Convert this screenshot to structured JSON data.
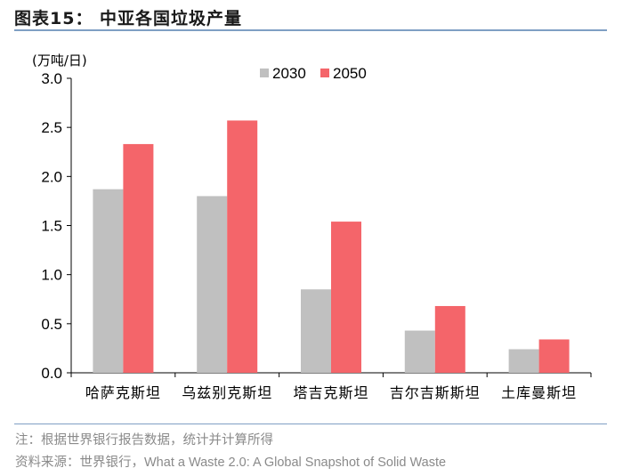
{
  "header": {
    "title": "图表15：  中亚各国垃圾产量"
  },
  "notes": {
    "note": "注：根据世界银行报告数据，统计并计算所得",
    "source_prefix": "资料来源：世界银行，",
    "source_text": "What a Waste 2.0: A Global Snapshot of Solid Waste"
  },
  "chart_data": {
    "type": "bar",
    "unit_label": "(万吨/日)",
    "categories": [
      "哈萨克斯坦",
      "乌兹别克斯坦",
      "塔吉克斯坦",
      "吉尔吉斯斯坦",
      "土库曼斯坦"
    ],
    "series": [
      {
        "name": "2030",
        "color": "#c0c0c0",
        "values": [
          1.87,
          1.8,
          0.85,
          0.43,
          0.24
        ]
      },
      {
        "name": "2050",
        "color": "#f4656a",
        "values": [
          2.33,
          2.57,
          1.54,
          0.68,
          0.34
        ]
      }
    ],
    "ylim": [
      0,
      3.0
    ],
    "yticks": [
      "0.0",
      "0.5",
      "1.0",
      "1.5",
      "2.0",
      "2.5",
      "3.0"
    ],
    "legend_position": "top",
    "grid": false
  }
}
